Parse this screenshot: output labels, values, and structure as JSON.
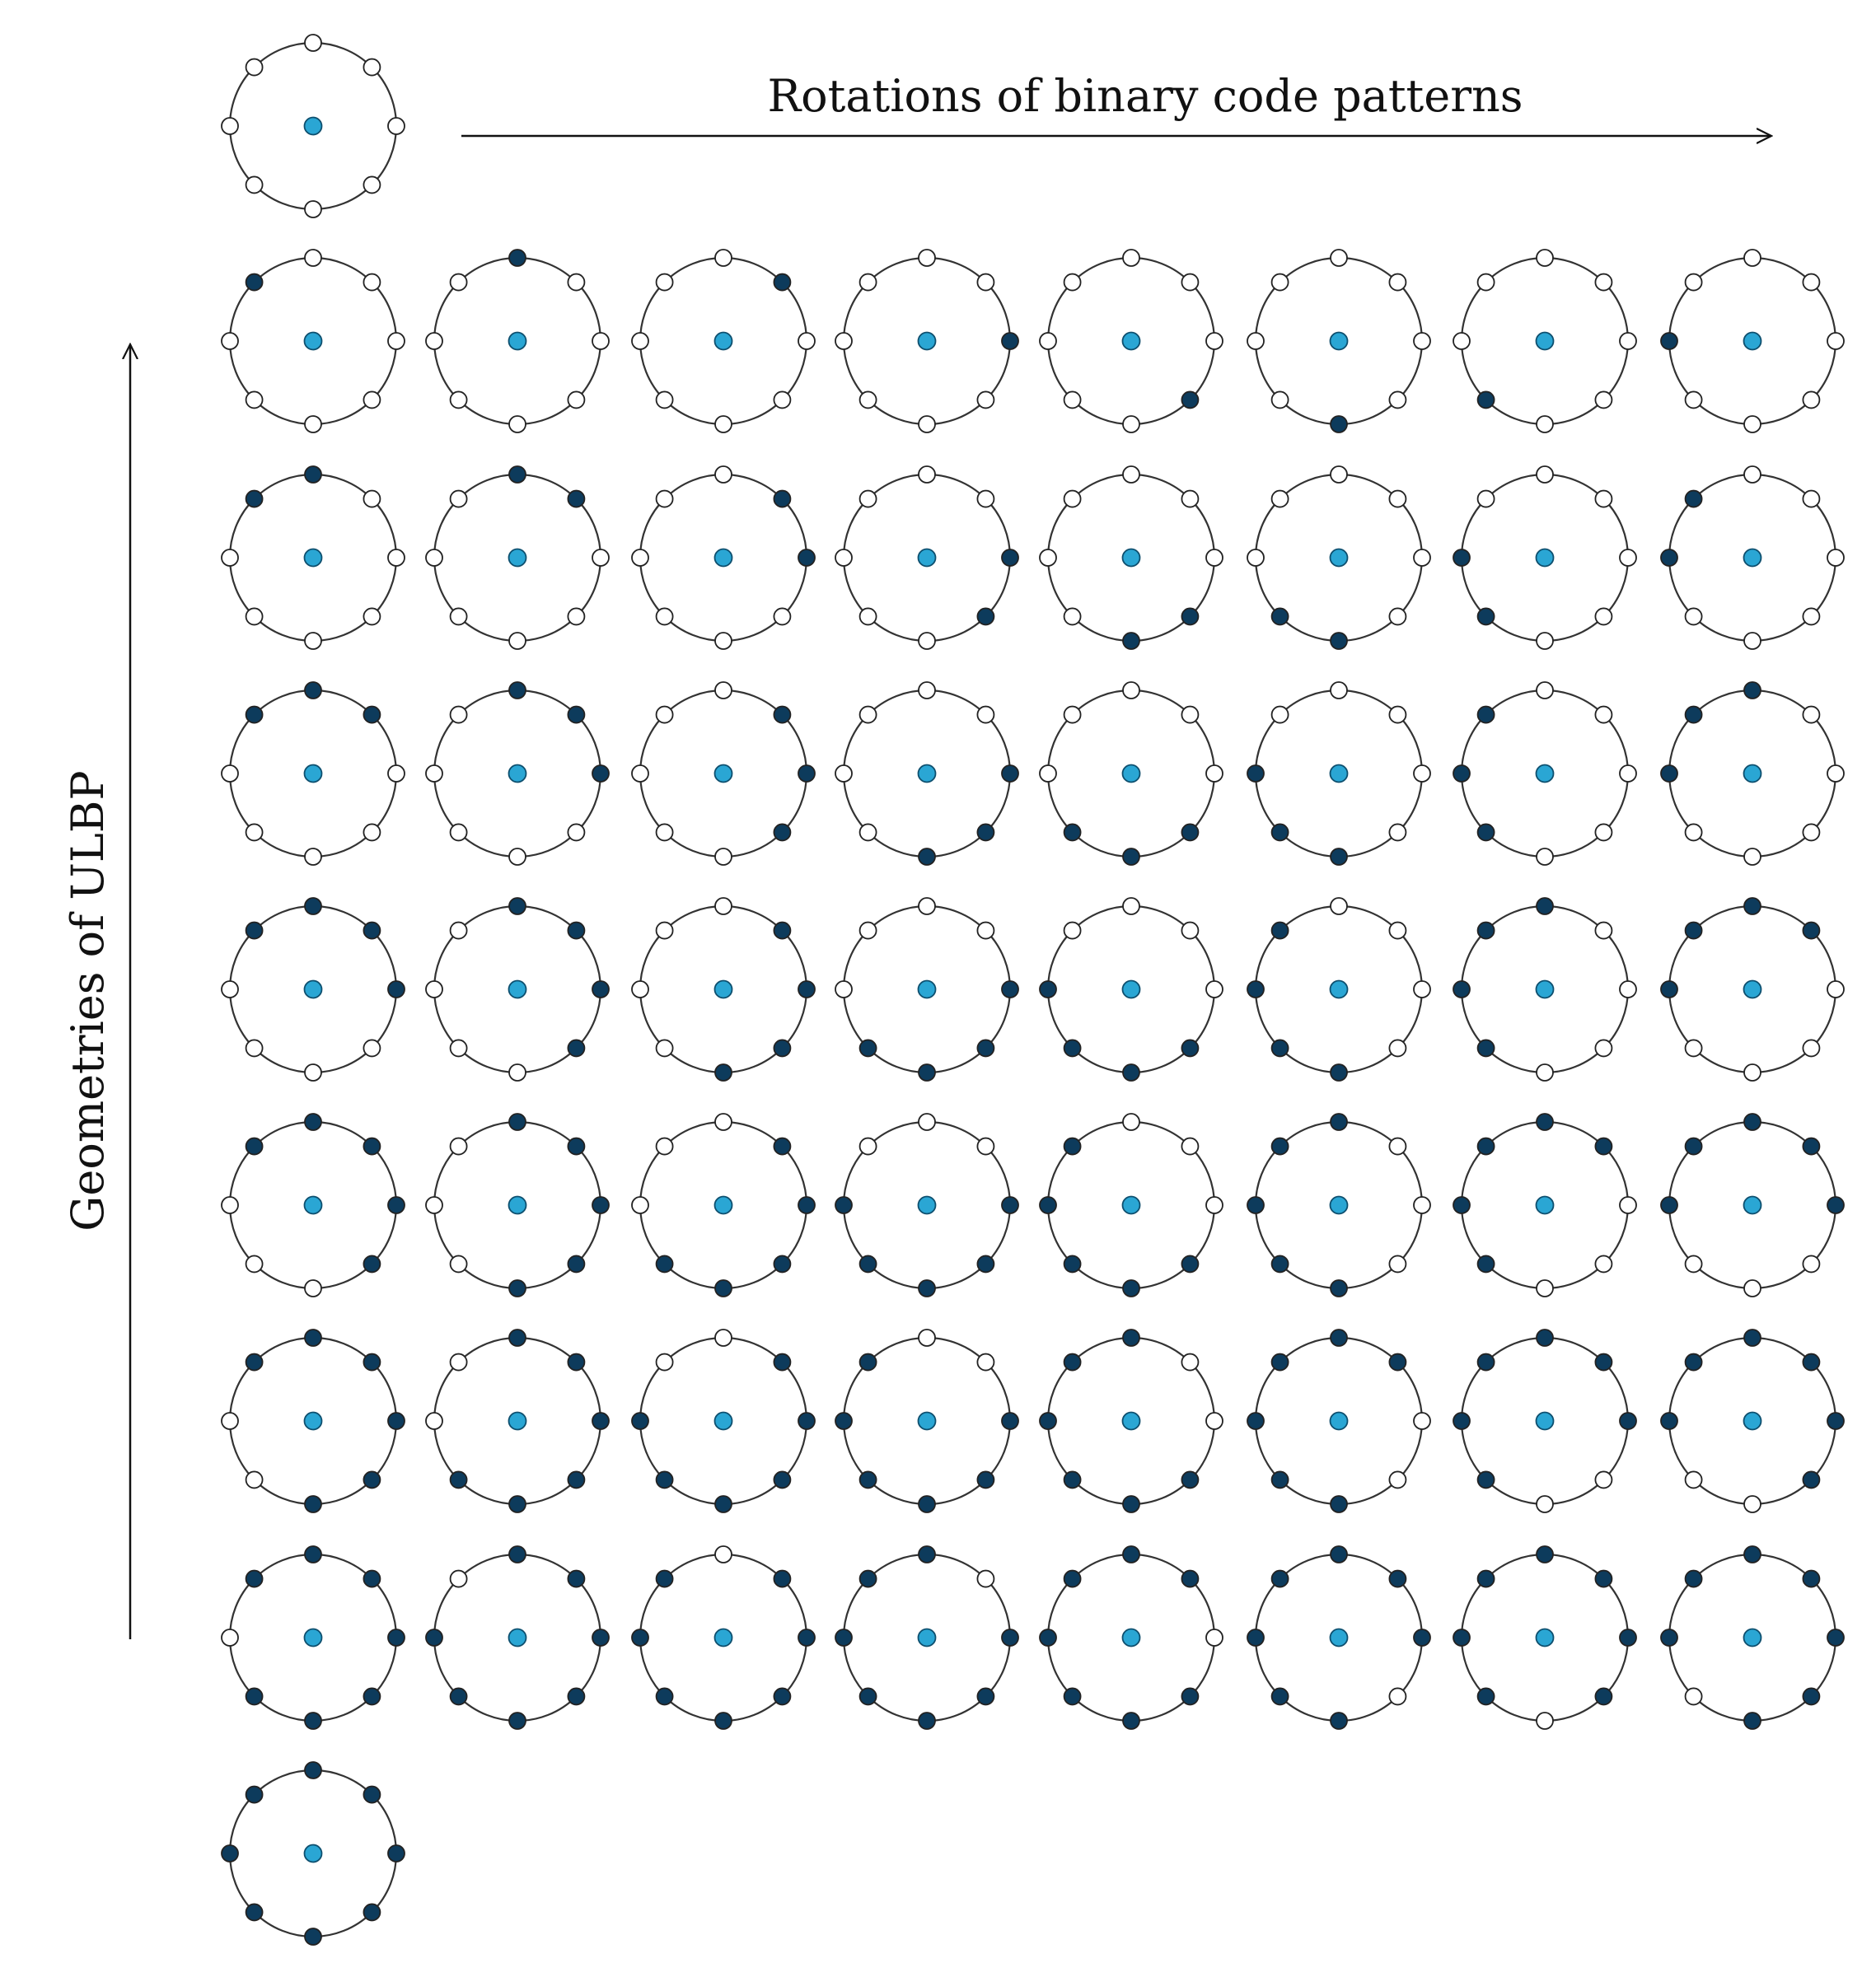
{
  "labels": {
    "horizontal_axis": "Rotations of binary code patterns",
    "vertical_axis": "Geometries of ULBP"
  },
  "colors": {
    "center_node": "#2aa6d4",
    "active_node": "#0d3b5c",
    "inactive_node": "#ffffff",
    "ring": "#333333"
  },
  "neighbor_order": [
    "N",
    "NE",
    "E",
    "SE",
    "S",
    "SW",
    "W",
    "NW"
  ],
  "patterns": [
    {
      "row": "all-zero",
      "cells": [
        "00000000"
      ]
    },
    {
      "row": "one-bit",
      "cells": [
        "00000001",
        "10000000",
        "01000000",
        "00100000",
        "00010000",
        "00001000",
        "00000100",
        "00000010"
      ]
    },
    {
      "row": "two-bit",
      "cells": [
        "10000001",
        "11000000",
        "01100000",
        "00110000",
        "00011000",
        "00001100",
        "00000110",
        "00000011"
      ]
    },
    {
      "row": "three-bit",
      "cells": [
        "11000001",
        "11100000",
        "01110000",
        "00111000",
        "00011100",
        "00001110",
        "00000111",
        "10000011"
      ]
    },
    {
      "row": "four-bit",
      "cells": [
        "11100001",
        "11110000",
        "01111000",
        "00111100",
        "00011110",
        "00001111",
        "10000111",
        "11000011"
      ]
    },
    {
      "row": "five-bit",
      "cells": [
        "11110001",
        "11111000",
        "01111100",
        "00111110",
        "00011111",
        "10001111",
        "11000111",
        "11100011"
      ]
    },
    {
      "row": "six-bit",
      "cells": [
        "11111001",
        "11111100",
        "01111110",
        "00111111",
        "10011111",
        "11001111",
        "11100111",
        "11110011"
      ]
    },
    {
      "row": "seven-bit",
      "cells": [
        "11111101",
        "11111110",
        "01111111",
        "10111111",
        "11011111",
        "11101111",
        "11110111",
        "11111011"
      ]
    },
    {
      "row": "all-one",
      "cells": [
        "11111111"
      ]
    }
  ]
}
